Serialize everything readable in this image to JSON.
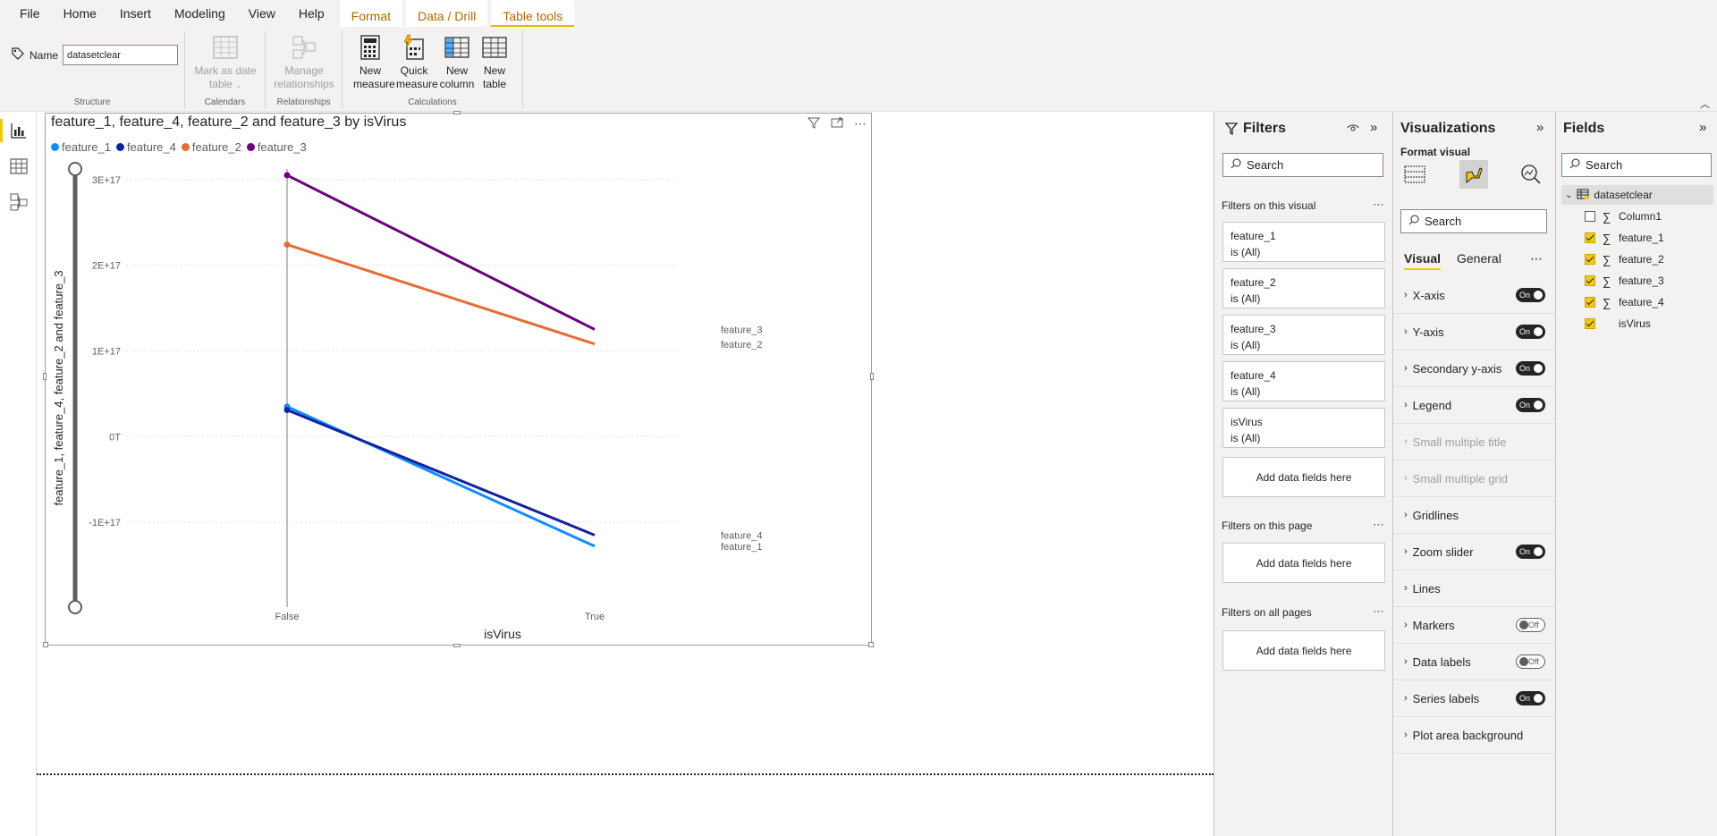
{
  "menu": {
    "file": "File",
    "home": "Home",
    "insert": "Insert",
    "modeling": "Modeling",
    "view": "View",
    "help": "Help",
    "format": "Format",
    "data_drill": "Data / Drill",
    "table_tools": "Table tools"
  },
  "ribbon": {
    "name_label": "Name",
    "name_value": "datasetclear",
    "mark_date_line1": "Mark as date",
    "mark_date_line2": "table",
    "manage_rel_line1": "Manage",
    "manage_rel_line2": "relationships",
    "new_measure_line1": "New",
    "new_measure_line2": "measure",
    "quick_measure_line1": "Quick",
    "quick_measure_line2": "measure",
    "new_column_line1": "New",
    "new_column_line2": "column",
    "new_table_line1": "New",
    "new_table_line2": "table",
    "groups": {
      "structure": "Structure",
      "calendars": "Calendars",
      "relationships": "Relationships",
      "calculations": "Calculations"
    }
  },
  "visual": {
    "title": "feature_1, feature_4, feature_2 and feature_3 by isVirus",
    "ylabel": "feature_1, feature_4, feature_2 and feature_3",
    "xlabel": "isVirus"
  },
  "chart_data": {
    "type": "line",
    "title": "feature_1, feature_4, feature_2 and feature_3 by isVirus",
    "xlabel": "isVirus",
    "ylabel": "feature_1, feature_4, feature_2 and feature_3",
    "categories": [
      "False",
      "True"
    ],
    "y_ticks": [
      "-1E+17",
      "0T",
      "1E+17",
      "2E+17",
      "3E+17"
    ],
    "ylim": [
      -1.5e+17,
      3.3e+17
    ],
    "grid": true,
    "legend_position": "top-left",
    "series": [
      {
        "name": "feature_1",
        "color": "#118DFF",
        "values": [
          3.5e+16,
          -1.28e+17
        ]
      },
      {
        "name": "feature_4",
        "color": "#12239E",
        "values": [
          3.1e+16,
          -1.15e+17
        ]
      },
      {
        "name": "feature_2",
        "color": "#E66C37",
        "values": [
          2.24e+17,
          1.08e+17
        ]
      },
      {
        "name": "feature_3",
        "color": "#6B007B",
        "values": [
          3.05e+17,
          1.25e+17
        ]
      }
    ]
  },
  "filters": {
    "title": "Filters",
    "search_placeholder": "Search",
    "on_visual": "Filters on this visual",
    "cards": [
      {
        "field": "feature_1",
        "state": "is (All)"
      },
      {
        "field": "feature_2",
        "state": "is (All)"
      },
      {
        "field": "feature_3",
        "state": "is (All)"
      },
      {
        "field": "feature_4",
        "state": "is (All)"
      },
      {
        "field": "isVirus",
        "state": "is (All)"
      }
    ],
    "add_fields": "Add data fields here",
    "on_page": "Filters on this page",
    "on_all_pages": "Filters on all pages"
  },
  "viz": {
    "title": "Visualizations",
    "sub": "Format visual",
    "search_placeholder": "Search",
    "tab_visual": "Visual",
    "tab_general": "General",
    "rows": [
      {
        "label": "X-axis",
        "toggle": "On",
        "disabled": false
      },
      {
        "label": "Y-axis",
        "toggle": "On",
        "disabled": false
      },
      {
        "label": "Secondary y-axis",
        "toggle": "On",
        "disabled": false
      },
      {
        "label": "Legend",
        "toggle": "On",
        "disabled": false
      },
      {
        "label": "Small multiple title",
        "toggle": "",
        "disabled": true
      },
      {
        "label": "Small multiple grid",
        "toggle": "",
        "disabled": true
      },
      {
        "label": "Gridlines",
        "toggle": "",
        "disabled": false
      },
      {
        "label": "Zoom slider",
        "toggle": "On",
        "disabled": false
      },
      {
        "label": "Lines",
        "toggle": "",
        "disabled": false
      },
      {
        "label": "Markers",
        "toggle": "Off",
        "disabled": false
      },
      {
        "label": "Data labels",
        "toggle": "Off",
        "disabled": false
      },
      {
        "label": "Series labels",
        "toggle": "On",
        "disabled": false
      },
      {
        "label": "Plot area background",
        "toggle": "",
        "disabled": false
      }
    ]
  },
  "fields": {
    "title": "Fields",
    "search_placeholder": "Search",
    "table_name": "datasetclear",
    "items": [
      {
        "name": "Column1",
        "checked": false,
        "sigma": true
      },
      {
        "name": "feature_1",
        "checked": true,
        "sigma": true
      },
      {
        "name": "feature_2",
        "checked": true,
        "sigma": true
      },
      {
        "name": "feature_3",
        "checked": true,
        "sigma": true
      },
      {
        "name": "feature_4",
        "checked": true,
        "sigma": true
      },
      {
        "name": "isVirus",
        "checked": true,
        "sigma": false
      }
    ]
  }
}
